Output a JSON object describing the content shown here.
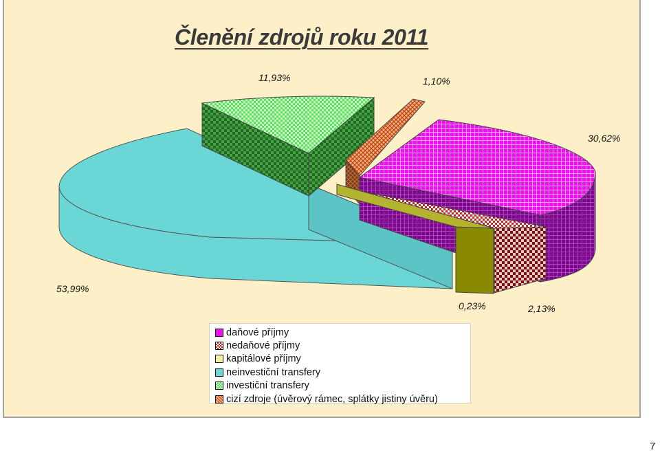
{
  "title": "Členění zdrojů roku 2011",
  "page_number": "7",
  "chart_data": {
    "type": "pie",
    "title": "Členění zdrojů roku 2011",
    "style": "3D exploded pie",
    "legend_position": "bottom",
    "slices": [
      {
        "name": "daňové příjmy",
        "value": 30.62,
        "label": "30,62%",
        "color": "#ee11ee"
      },
      {
        "name": "nedaňové příjmy",
        "value": 2.13,
        "label": "2,13%",
        "color": "#cc2222"
      },
      {
        "name": "kapitálové příjmy",
        "value": 0.23,
        "label": "0,23%",
        "color": "#f2f2a0"
      },
      {
        "name": "neinvestiční transfery",
        "value": 53.99,
        "label": "53,99%",
        "color": "#6ad6d6"
      },
      {
        "name": "investiční transfery",
        "value": 11.93,
        "label": "11,93%",
        "color": "#8cf08c"
      },
      {
        "name": "cizí zdroje (úvěrový rámec, splátky jistiny úvěru)",
        "value": 1.1,
        "label": "1,10%",
        "color": "#e07040"
      }
    ]
  }
}
